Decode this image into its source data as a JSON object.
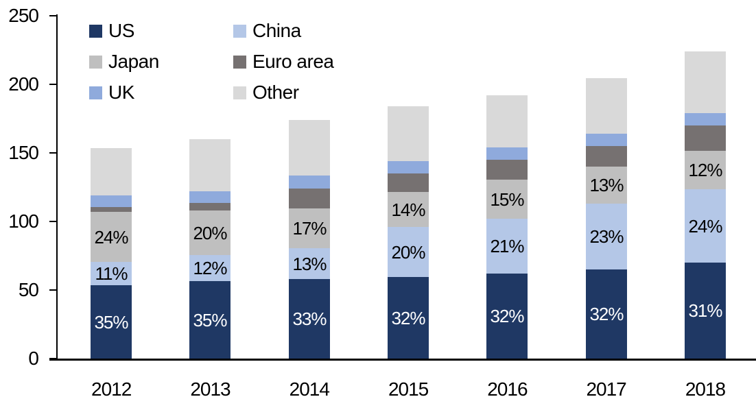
{
  "chart_data": {
    "type": "bar",
    "subtype": "stacked-column",
    "title": "",
    "xlabel": "",
    "ylabel": "",
    "categories": [
      "2012",
      "2013",
      "2014",
      "2015",
      "2016",
      "2017",
      "2018"
    ],
    "series": [
      {
        "name": "US",
        "color": "#1f3864",
        "label_color": "#ffffff",
        "values": [
          53.5,
          56.5,
          58.0,
          59.5,
          62.0,
          65.0,
          70.0
        ],
        "labels": [
          "35%",
          "35%",
          "33%",
          "32%",
          "32%",
          "32%",
          "31%"
        ]
      },
      {
        "name": "China",
        "color": "#b4c7e7",
        "label_color": "#000000",
        "values": [
          17.0,
          19.0,
          22.5,
          36.5,
          40.0,
          48.0,
          53.5
        ],
        "labels": [
          "11%",
          "12%",
          "13%",
          "20%",
          "21%",
          "23%",
          "24%"
        ]
      },
      {
        "name": "Japan",
        "color": "#bfbfbf",
        "label_color": "#000000",
        "values": [
          36.5,
          32.5,
          29.0,
          25.5,
          28.5,
          27.0,
          28.0
        ],
        "labels": [
          "24%",
          "20%",
          "17%",
          "14%",
          "15%",
          "13%",
          "12%"
        ]
      },
      {
        "name": "Euro area",
        "color": "#767171",
        "label_color": "#000000",
        "values": [
          3.5,
          5.5,
          14.5,
          13.5,
          14.5,
          15.0,
          18.5
        ],
        "labels": [
          "",
          "",
          "",
          "",
          "",
          "",
          ""
        ]
      },
      {
        "name": "UK",
        "color": "#8faadc",
        "label_color": "#000000",
        "values": [
          8.5,
          8.5,
          9.5,
          9.0,
          9.0,
          9.0,
          9.0
        ],
        "labels": [
          "",
          "",
          "",
          "",
          "",
          "",
          ""
        ]
      },
      {
        "name": "Other",
        "color": "#d9d9d9",
        "label_color": "#000000",
        "values": [
          34.5,
          38.0,
          40.5,
          40.0,
          38.0,
          40.5,
          45.0
        ],
        "labels": [
          "",
          "",
          "",
          "",
          "",
          "",
          ""
        ]
      }
    ],
    "totals": [
      153.5,
      160.0,
      174.0,
      184.0,
      192.0,
      204.5,
      224.0
    ],
    "y_axis": {
      "min": 0,
      "max": 250,
      "step": 50,
      "tick_labels": [
        "0",
        "50",
        "100",
        "150",
        "200",
        "250"
      ]
    },
    "grid": "off",
    "legend": {
      "position": "top-left",
      "columns": 2,
      "order_row_major": [
        "US",
        "China",
        "Japan",
        "Euro area",
        "UK",
        "Other"
      ]
    },
    "axis_color": "#000000"
  }
}
